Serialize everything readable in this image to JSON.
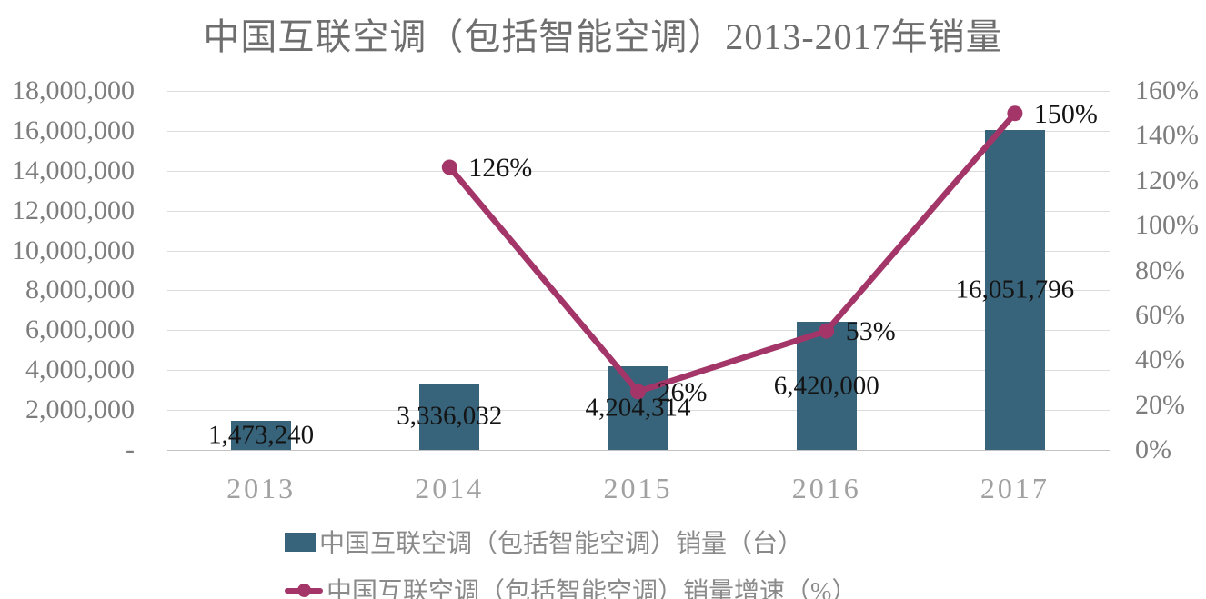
{
  "title": "中国互联空调（包括智能空调）2013-2017年销量",
  "colors": {
    "bar": "#37647b",
    "line": "#a33568",
    "grid": "#dcdcdc",
    "axis_line": "#c2c2c2",
    "data_label": "#141414",
    "axis_text": "#7d7d7d",
    "category_text": "#a1a1a1",
    "title_text": "#6e6e6e",
    "legend_text": "#8a8a8a"
  },
  "chart_data": {
    "type": "bar+line combo",
    "title": "中国互联空调（包括智能空调）2013-2017年销量",
    "categories": [
      "2013",
      "2014",
      "2015",
      "2016",
      "2017"
    ],
    "series": [
      {
        "name": "中国互联空调（包括智能空调）销量（台）",
        "type": "bar",
        "axis": "left",
        "values": [
          1473240,
          3336032,
          4204314,
          6420000,
          16051796
        ],
        "labels": [
          "1,473,240",
          "3,336,032",
          "4,204,314",
          "6,420,000",
          "16,051,796"
        ]
      },
      {
        "name": "中国互联空调（包括智能空调）销量增速（%）",
        "type": "line",
        "axis": "right",
        "values": [
          null,
          1.26,
          0.26,
          0.53,
          1.5
        ],
        "labels": [
          "",
          "126%",
          "26%",
          "53%",
          "150%"
        ]
      }
    ],
    "left_axis": {
      "min": 0,
      "max": 18000000,
      "ticks": [
        "18,000,000",
        "16,000,000",
        "14,000,000",
        "12,000,000",
        "10,000,000",
        "8,000,000",
        "6,000,000",
        "4,000,000",
        "2,000,000",
        "-"
      ]
    },
    "right_axis": {
      "min": 0,
      "max": 1.6,
      "ticks": [
        "160%",
        "140%",
        "120%",
        "100%",
        "80%",
        "60%",
        "40%",
        "20%",
        "0%"
      ]
    },
    "grid": true,
    "legend_position": "bottom"
  }
}
